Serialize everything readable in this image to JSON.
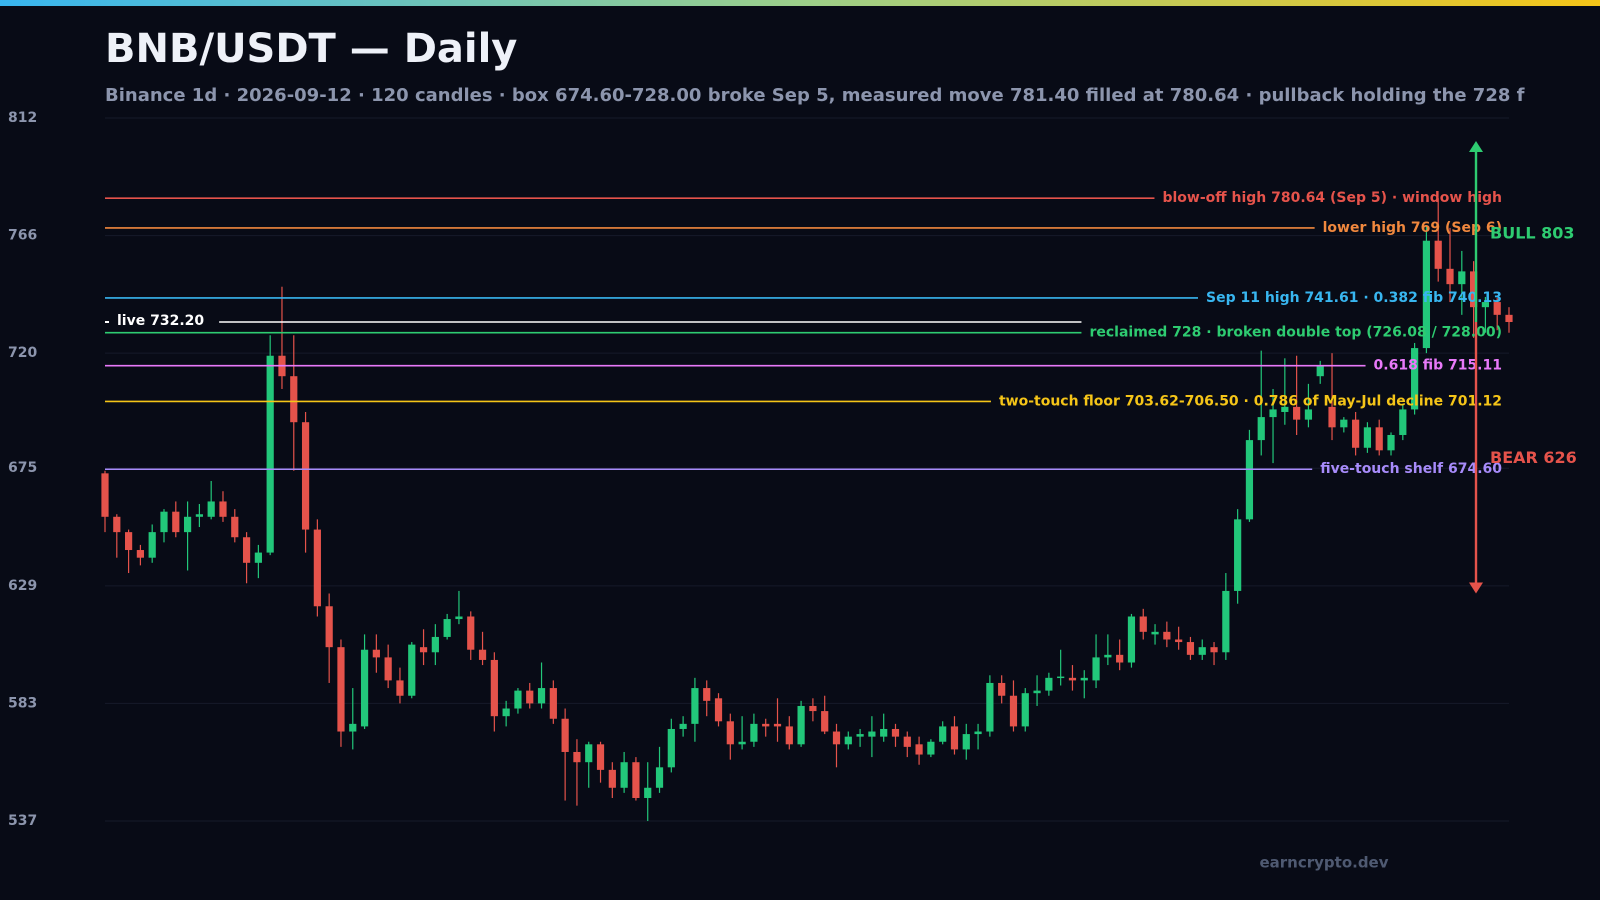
{
  "chart_data": {
    "type": "candlestick",
    "title": "BNB/USDT — Daily",
    "subtitle": "Binance 1d · 2026-09-12 · 120 candles · box 674.60-728.00 broke Sep 5, measured move 781.40 filled at 780.64 · pullback holding the 728 f",
    "ylim": [
      537,
      812
    ],
    "yticks": [
      537,
      583,
      629,
      675,
      720,
      766,
      812
    ],
    "grid": true,
    "up_color": "#22c77a",
    "down_color": "#e5534b",
    "open": [
      673,
      656,
      650,
      643,
      640,
      650,
      658,
      650,
      656,
      656,
      662,
      656,
      648,
      638,
      642,
      719,
      711,
      693,
      651,
      621,
      605,
      572,
      574,
      604,
      601,
      592,
      586,
      605,
      603,
      609,
      616,
      617,
      604,
      600,
      578,
      581,
      588,
      583,
      589,
      577,
      564,
      560,
      567,
      557,
      550,
      560,
      546,
      550,
      558,
      573,
      575,
      589,
      585,
      576,
      567,
      568,
      575,
      575,
      574,
      567,
      582,
      580,
      572,
      567,
      570,
      570,
      570,
      573,
      570,
      567,
      563,
      568,
      574,
      565,
      571,
      572,
      591,
      586,
      574,
      587,
      588,
      593,
      593,
      592,
      592,
      601,
      602,
      599,
      617,
      610,
      611,
      608,
      607,
      602,
      605,
      603,
      627,
      655,
      686,
      695,
      697,
      699,
      694,
      711,
      699,
      691,
      694,
      683,
      691,
      682,
      688,
      698,
      722,
      764,
      753,
      747,
      752,
      738,
      740,
      735
    ],
    "high": [
      674,
      657,
      651,
      645,
      653,
      659,
      662,
      662,
      661,
      670,
      666,
      659,
      650,
      645,
      727,
      746,
      727,
      697,
      655,
      626,
      608,
      589,
      610,
      610,
      606,
      597,
      607,
      612,
      614,
      618,
      627,
      619,
      611,
      603,
      584,
      589,
      591,
      599,
      592,
      581,
      569,
      568,
      568,
      560,
      564,
      562,
      560,
      566,
      577,
      578,
      593,
      592,
      587,
      579,
      578,
      579,
      577,
      585,
      578,
      584,
      585,
      586,
      575,
      572,
      573,
      578,
      579,
      575,
      572,
      570,
      569,
      576,
      578,
      575,
      575,
      594,
      594,
      592,
      589,
      594,
      595,
      604,
      598,
      596,
      610,
      610,
      608,
      618,
      620,
      614,
      615,
      613,
      609,
      608,
      607,
      634,
      659,
      690,
      721,
      706,
      718,
      719,
      708,
      717,
      720,
      695,
      697,
      693,
      694,
      689,
      700,
      724,
      770,
      780.64,
      769,
      760,
      756,
      742,
      741.61,
      738
    ],
    "low": [
      650,
      640,
      634,
      637,
      638,
      646,
      648,
      635,
      652,
      655,
      654,
      646,
      630,
      632,
      641,
      706,
      674,
      642,
      617,
      591,
      566,
      565,
      573,
      595,
      589,
      583,
      585,
      598,
      598,
      608,
      614,
      600,
      598,
      572,
      574,
      579,
      581,
      581,
      575,
      545,
      543,
      550,
      552,
      546,
      548,
      545,
      537,
      548,
      556,
      570,
      568,
      578,
      574,
      561,
      565,
      566,
      570,
      568,
      565,
      566,
      576,
      571,
      558,
      565,
      566,
      562,
      568,
      566,
      562,
      559,
      562,
      567,
      563,
      561,
      565,
      570,
      583,
      572,
      572,
      582,
      586,
      590,
      588,
      585,
      589,
      598,
      596,
      597,
      608,
      606,
      605,
      604,
      600,
      600,
      598,
      600,
      622,
      654,
      680,
      677,
      692,
      688,
      691,
      708,
      686,
      689,
      680,
      681,
      680,
      680,
      686,
      696,
      720,
      748,
      740,
      735,
      726,
      728,
      729,
      728
    ],
    "close": [
      656,
      650,
      643,
      640,
      650,
      658,
      650,
      656,
      657,
      662,
      656,
      648,
      638,
      642,
      719,
      711,
      693,
      651,
      621,
      605,
      572,
      575,
      604,
      601,
      592,
      586,
      606,
      603,
      609,
      616,
      617,
      604,
      600,
      578,
      581,
      588,
      583,
      589,
      577,
      564,
      560,
      567,
      557,
      550,
      560,
      546,
      550,
      558,
      573,
      575,
      589,
      584,
      576,
      567,
      568,
      575,
      574,
      574,
      567,
      582,
      580,
      572,
      567,
      570,
      571,
      572,
      573,
      570,
      566,
      563,
      568,
      574,
      565,
      571,
      572,
      591,
      586,
      574,
      587,
      588,
      593,
      593.5,
      592,
      593,
      601,
      602,
      599,
      617,
      611,
      611,
      608,
      607,
      602,
      605,
      603,
      627,
      655,
      686,
      695,
      698,
      699,
      694,
      698,
      715,
      691,
      694,
      683,
      691,
      682,
      688,
      698,
      722,
      764,
      753,
      747,
      752,
      738,
      740,
      735,
      732.2
    ],
    "levels": [
      {
        "label": "blow-off high 780.64 (Sep 5) · window high",
        "value": 780.64,
        "color": "#e5534b"
      },
      {
        "label": "lower high 769 (Sep 6)",
        "value": 769,
        "color": "#f0883e"
      },
      {
        "label": "Sep 11 high 741.61 · 0.382 fib 740.13",
        "value": 741.61,
        "color": "#38b6f0"
      },
      {
        "label": "reclaimed 728 · broken double top (726.08 / 728.00)",
        "value": 728,
        "color": "#2ecc71"
      },
      {
        "label": "0.618 fib 715.11",
        "value": 715.11,
        "color": "#e879f9"
      },
      {
        "label": "two-touch floor 703.62-706.50 · 0.786 of May-Jul decline 701.12",
        "value": 701.12,
        "color": "#f5c518"
      },
      {
        "label": "five-touch shelf 674.60",
        "value": 674.6,
        "color": "#a78bfa"
      }
    ],
    "live": {
      "label": "live 732.20",
      "value": 732.2,
      "color": "#ffffff"
    },
    "targets": [
      {
        "name": "BULL",
        "value": 803,
        "color": "#2ecc71"
      },
      {
        "name": "BEAR",
        "value": 626,
        "color": "#e5534b"
      }
    ],
    "watermark": "earncrypto.dev"
  }
}
